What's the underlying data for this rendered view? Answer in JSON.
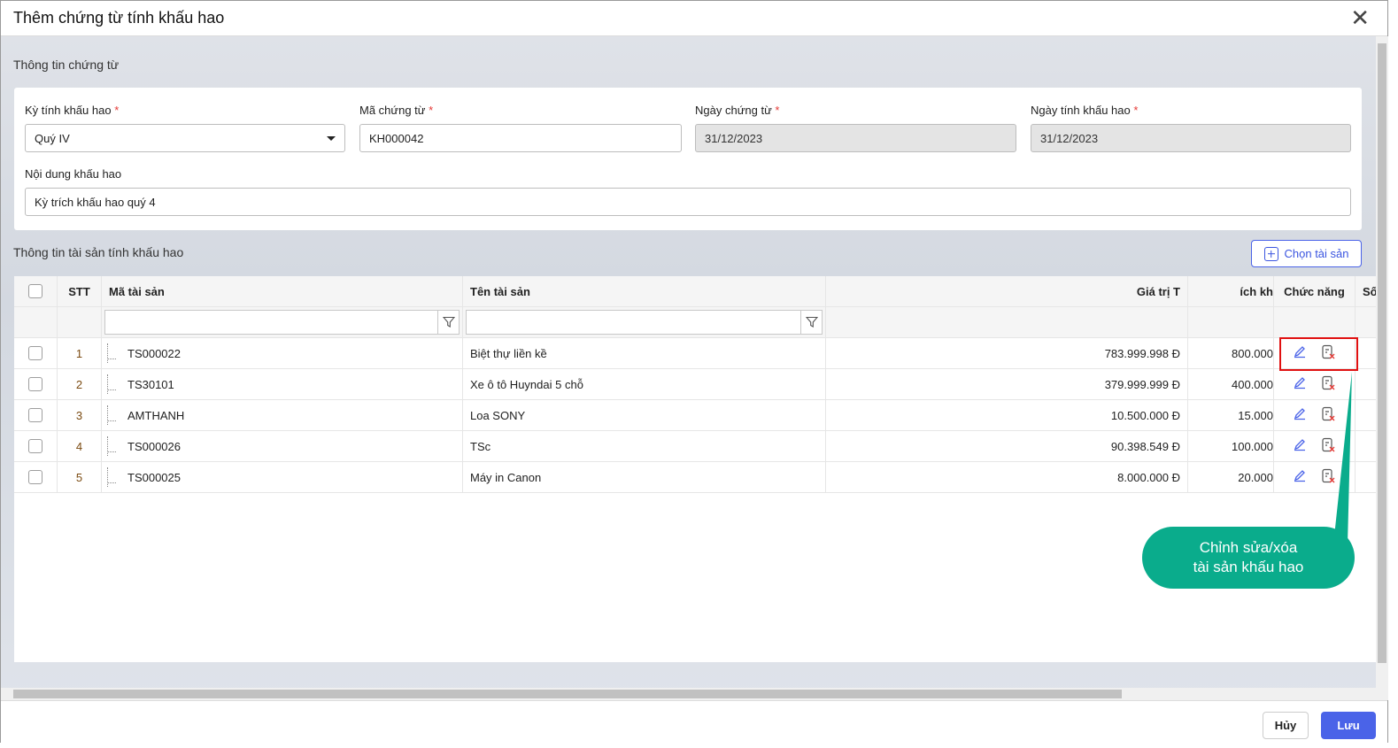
{
  "dialog": {
    "title": "Thêm chứng từ tính khấu hao",
    "close_icon": "close-icon"
  },
  "voucher_section": {
    "title": "Thông tin chứng từ",
    "period": {
      "label": "Kỳ tính khấu hao",
      "value": "Quý IV"
    },
    "code": {
      "label": "Mã chứng từ",
      "value": "KH000042"
    },
    "voucher_date": {
      "label": "Ngày chứng từ",
      "value": "31/12/2023"
    },
    "depr_date": {
      "label": "Ngày tính khấu hao",
      "value": "31/12/2023"
    },
    "content": {
      "label": "Nội dung khấu hao",
      "value": "Kỳ trích khấu hao quý 4"
    },
    "required_mark": "*"
  },
  "asset_section": {
    "title": "Thông tin tài sản tính khấu hao",
    "choose_button": "Chọn tài sản"
  },
  "table": {
    "headers": [
      "STT",
      "Mã tài sản",
      "Tên tài sản",
      "Giá trị T",
      "ích kh",
      "Chức năng",
      "Số"
    ],
    "rows": [
      {
        "stt": "1",
        "code": "TS000022",
        "name": "Biệt thự liền kề",
        "value": "783.999.998 Đ",
        "depr": "800.000"
      },
      {
        "stt": "2",
        "code": "TS30101",
        "name": "Xe ô tô Huyndai 5 chỗ",
        "value": "379.999.999 Đ",
        "depr": "400.000"
      },
      {
        "stt": "3",
        "code": "AMTHANH",
        "name": "Loa SONY",
        "value": "10.500.000 Đ",
        "depr": "15.000"
      },
      {
        "stt": "4",
        "code": "TS000026",
        "name": "TSc",
        "value": "90.398.549 Đ",
        "depr": "100.000"
      },
      {
        "stt": "5",
        "code": "TS000025",
        "name": "Máy in Canon",
        "value": "8.000.000 Đ",
        "depr": "20.000"
      }
    ]
  },
  "callout": {
    "line1": "Chỉnh sửa/xóa",
    "line2": "tài sản khấu hao",
    "color": "#0aac8c"
  },
  "footer": {
    "cancel": "Hủy",
    "save": "Lưu"
  },
  "colors": {
    "accent": "#4a63e8",
    "highlight": "#e01010"
  }
}
